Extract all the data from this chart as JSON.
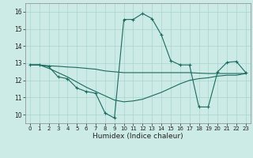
{
  "title": "",
  "xlabel": "Humidex (Indice chaleur)",
  "ylabel": "",
  "bg_color": "#cceae6",
  "line_color": "#1a6b5e",
  "grid_color": "#aad4d0",
  "xlim": [
    -0.5,
    23.5
  ],
  "ylim": [
    9.5,
    16.5
  ],
  "xticks": [
    0,
    1,
    2,
    3,
    4,
    5,
    6,
    7,
    8,
    9,
    10,
    11,
    12,
    13,
    14,
    15,
    16,
    17,
    18,
    19,
    20,
    21,
    22,
    23
  ],
  "yticks": [
    10,
    11,
    12,
    13,
    14,
    15,
    16
  ],
  "line1_x": [
    0,
    1,
    2,
    3,
    4,
    5,
    6,
    7,
    8,
    9,
    10,
    11,
    12,
    13,
    14,
    15,
    16,
    17,
    18,
    19,
    20,
    21,
    22,
    23
  ],
  "line1_y": [
    12.9,
    12.9,
    12.8,
    12.2,
    12.1,
    11.55,
    11.35,
    11.25,
    10.1,
    9.8,
    15.55,
    15.55,
    15.9,
    15.6,
    14.65,
    13.15,
    12.9,
    12.9,
    10.45,
    10.45,
    12.5,
    13.05,
    13.1,
    12.45
  ],
  "line2_x": [
    0,
    1,
    2,
    3,
    4,
    5,
    6,
    7,
    8,
    9,
    10,
    11,
    12,
    13,
    14,
    15,
    16,
    17,
    18,
    19,
    20,
    21,
    22,
    23
  ],
  "line2_y": [
    12.9,
    12.9,
    12.85,
    12.82,
    12.78,
    12.75,
    12.7,
    12.65,
    12.55,
    12.5,
    12.45,
    12.45,
    12.45,
    12.45,
    12.45,
    12.45,
    12.45,
    12.45,
    12.42,
    12.4,
    12.4,
    12.4,
    12.4,
    12.4
  ],
  "line3_x": [
    0,
    1,
    2,
    3,
    4,
    5,
    6,
    7,
    8,
    9,
    10,
    11,
    12,
    13,
    14,
    15,
    16,
    17,
    18,
    19,
    20,
    21,
    22,
    23
  ],
  "line3_y": [
    12.9,
    12.9,
    12.7,
    12.45,
    12.2,
    11.9,
    11.6,
    11.35,
    11.1,
    10.85,
    10.75,
    10.8,
    10.9,
    11.1,
    11.3,
    11.55,
    11.8,
    12.0,
    12.1,
    12.15,
    12.25,
    12.3,
    12.3,
    12.4
  ]
}
